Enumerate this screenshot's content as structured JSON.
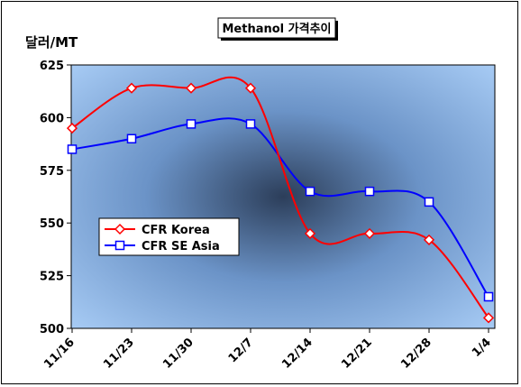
{
  "chart_data": {
    "type": "line",
    "title": "Methanol 가격추이",
    "ylabel": "달러/MT",
    "xlabel": "",
    "categories": [
      "11/16",
      "11/23",
      "11/30",
      "12/7",
      "12/14",
      "12/21",
      "12/28",
      "1/4"
    ],
    "ylim": [
      500,
      625
    ],
    "yticks": [
      500,
      525,
      550,
      575,
      600,
      625
    ],
    "grid": false,
    "legend_position": "middle-left",
    "series": [
      {
        "name": "CFR Korea",
        "values": [
          595,
          614,
          614,
          614,
          545,
          545,
          542,
          505
        ],
        "color": "#ff0000",
        "marker": "diamond"
      },
      {
        "name": "CFR SE Asia",
        "values": [
          585,
          590,
          597,
          597,
          565,
          565,
          560,
          515
        ],
        "color": "#0000ff",
        "marker": "square"
      }
    ]
  }
}
